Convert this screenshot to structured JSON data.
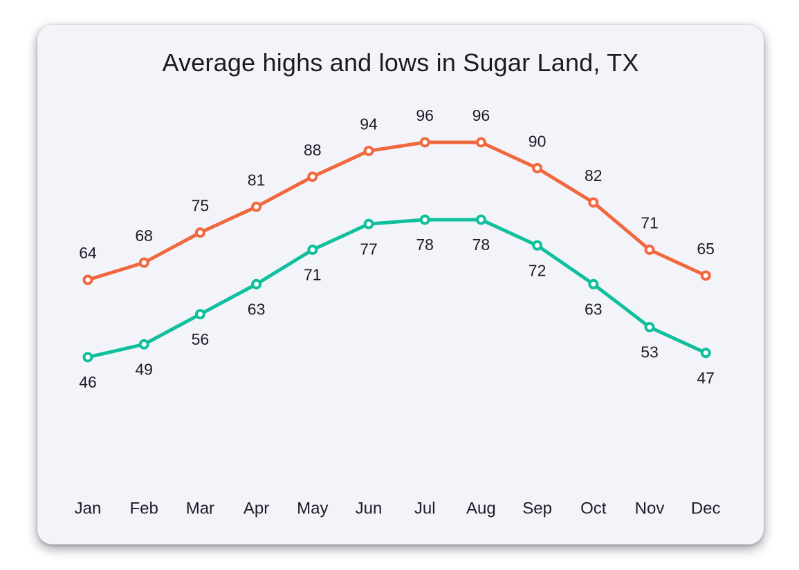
{
  "chart_data": {
    "type": "line",
    "title": "Average highs and lows in Sugar Land, TX",
    "categories": [
      "Jan",
      "Feb",
      "Mar",
      "Apr",
      "May",
      "Jun",
      "Jul",
      "Aug",
      "Sep",
      "Oct",
      "Nov",
      "Dec"
    ],
    "series": [
      {
        "name": "Average high",
        "color": "#F1683E",
        "label_position": "above",
        "values": [
          64,
          68,
          75,
          81,
          88,
          94,
          96,
          96,
          90,
          82,
          71,
          65
        ]
      },
      {
        "name": "Average low",
        "color": "#10BF9C",
        "label_position": "below",
        "values": [
          46,
          49,
          56,
          63,
          71,
          77,
          78,
          78,
          72,
          63,
          53,
          47
        ]
      }
    ],
    "xlabel": "",
    "ylabel": "",
    "ylim": [
      40,
      100
    ],
    "grid": false,
    "legend_position": "none",
    "data_labels": true,
    "marker": "open-circle",
    "text_color": "#1C1C26",
    "card_background": "#F3F4FA"
  }
}
